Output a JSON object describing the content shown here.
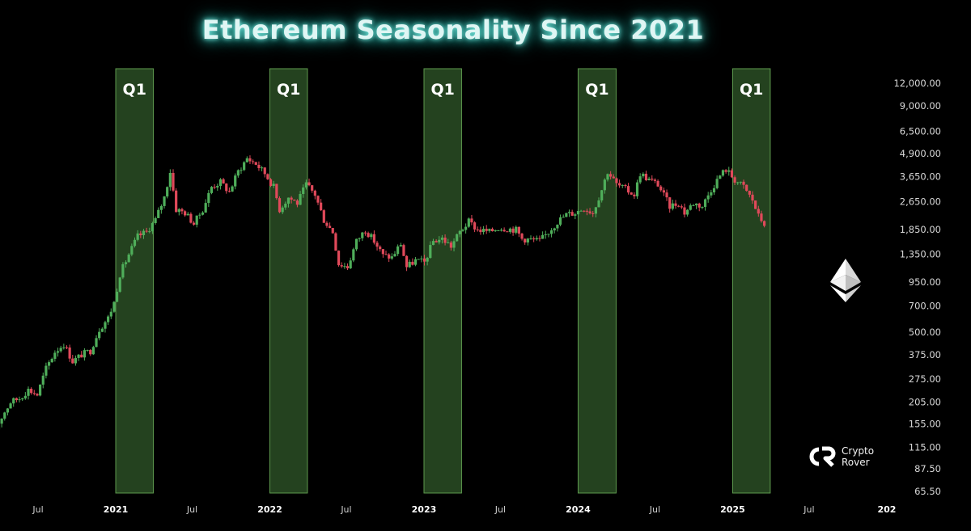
{
  "title": "Ethereum Seasonality Since 2021",
  "brand": {
    "line1": "Crypto",
    "line2": "Rover",
    "logo_text": "CR",
    "icon": "crypto-rover-logo"
  },
  "colors": {
    "bull": "#4fae5a",
    "bear": "#e0495a",
    "highlight_fill": "#24421f",
    "highlight_border": "#5e9a4e",
    "title_glow": "#3fd8cc"
  },
  "icons": {
    "eth": "ethereum-diamond-icon"
  },
  "chart_data": {
    "type": "candlestick",
    "title": "Ethereum Seasonality Since 2021",
    "y_scale": "log",
    "ylim": [
      65.5,
      12000
    ],
    "y_ticks": [
      "12,000.00",
      "9,000.00",
      "6,500.00",
      "4,900.00",
      "3,650.00",
      "2,650.00",
      "1,850.00",
      "1,350.00",
      "950.00",
      "700.00",
      "500.00",
      "375.00",
      "275.00",
      "205.00",
      "155.00",
      "115.00",
      "87.50",
      "65.50"
    ],
    "x_ticks": [
      {
        "label": "Jul",
        "date": "2020-07-01",
        "bold": false
      },
      {
        "label": "2021",
        "date": "2021-01-01",
        "bold": true
      },
      {
        "label": "Jul",
        "date": "2021-07-01",
        "bold": false
      },
      {
        "label": "2022",
        "date": "2022-01-01",
        "bold": true
      },
      {
        "label": "Jul",
        "date": "2022-07-01",
        "bold": false
      },
      {
        "label": "2023",
        "date": "2023-01-01",
        "bold": true
      },
      {
        "label": "Jul",
        "date": "2023-07-01",
        "bold": false
      },
      {
        "label": "2024",
        "date": "2024-01-01",
        "bold": true
      },
      {
        "label": "Jul",
        "date": "2024-07-01",
        "bold": false
      },
      {
        "label": "2025",
        "date": "2025-01-01",
        "bold": true
      },
      {
        "label": "Jul",
        "date": "2025-07-01",
        "bold": false
      },
      {
        "label": "202",
        "date": "2026-01-01",
        "bold": true
      }
    ],
    "highlights": [
      {
        "label": "Q1",
        "start": "2021-01-01",
        "end": "2021-03-31"
      },
      {
        "label": "Q1",
        "start": "2022-01-01",
        "end": "2022-03-31"
      },
      {
        "label": "Q1",
        "start": "2023-01-01",
        "end": "2023-03-31"
      },
      {
        "label": "Q1",
        "start": "2024-01-01",
        "end": "2024-03-31"
      },
      {
        "label": "Q1",
        "start": "2025-01-01",
        "end": "2025-03-31"
      }
    ],
    "price_path": [
      [
        "2020-03-16",
        135
      ],
      [
        "2020-04-06",
        170
      ],
      [
        "2020-04-27",
        205
      ],
      [
        "2020-05-18",
        215
      ],
      [
        "2020-06-08",
        240
      ],
      [
        "2020-06-29",
        225
      ],
      [
        "2020-07-20",
        315
      ],
      [
        "2020-08-10",
        390
      ],
      [
        "2020-08-31",
        430
      ],
      [
        "2020-09-21",
        345
      ],
      [
        "2020-10-12",
        375
      ],
      [
        "2020-11-02",
        395
      ],
      [
        "2020-11-23",
        520
      ],
      [
        "2020-12-14",
        600
      ],
      [
        "2020-12-28",
        730
      ],
      [
        "2021-01-11",
        1050
      ],
      [
        "2021-02-01",
        1350
      ],
      [
        "2021-02-22",
        1700
      ],
      [
        "2021-03-15",
        1800
      ],
      [
        "2021-04-05",
        2100
      ],
      [
        "2021-04-26",
        2800
      ],
      [
        "2021-05-10",
        3900
      ],
      [
        "2021-05-24",
        2400
      ],
      [
        "2021-06-14",
        2300
      ],
      [
        "2021-07-05",
        2000
      ],
      [
        "2021-07-26",
        2400
      ],
      [
        "2021-08-16",
        3200
      ],
      [
        "2021-09-06",
        3400
      ],
      [
        "2021-09-27",
        3000
      ],
      [
        "2021-10-18",
        3900
      ],
      [
        "2021-11-08",
        4600
      ],
      [
        "2021-11-29",
        4300
      ],
      [
        "2021-12-20",
        3800
      ],
      [
        "2022-01-10",
        3200
      ],
      [
        "2022-01-24",
        2400
      ],
      [
        "2022-02-14",
        2800
      ],
      [
        "2022-03-07",
        2600
      ],
      [
        "2022-03-28",
        3300
      ],
      [
        "2022-04-18",
        2900
      ],
      [
        "2022-05-09",
        2100
      ],
      [
        "2022-05-30",
        1800
      ],
      [
        "2022-06-13",
        1200
      ],
      [
        "2022-07-04",
        1150
      ],
      [
        "2022-07-25",
        1600
      ],
      [
        "2022-08-15",
        1850
      ],
      [
        "2022-09-05",
        1600
      ],
      [
        "2022-09-26",
        1330
      ],
      [
        "2022-10-17",
        1300
      ],
      [
        "2022-11-07",
        1550
      ],
      [
        "2022-11-21",
        1150
      ],
      [
        "2022-12-12",
        1250
      ],
      [
        "2023-01-02",
        1220
      ],
      [
        "2023-01-23",
        1600
      ],
      [
        "2023-02-13",
        1650
      ],
      [
        "2023-03-06",
        1500
      ],
      [
        "2023-03-27",
        1800
      ],
      [
        "2023-04-17",
        2050
      ],
      [
        "2023-05-08",
        1850
      ],
      [
        "2023-06-05",
        1800
      ],
      [
        "2023-06-26",
        1900
      ],
      [
        "2023-07-17",
        1880
      ],
      [
        "2023-08-07",
        1850
      ],
      [
        "2023-08-21",
        1650
      ],
      [
        "2023-09-11",
        1630
      ],
      [
        "2023-10-02",
        1600
      ],
      [
        "2023-10-23",
        1800
      ],
      [
        "2023-11-13",
        2050
      ],
      [
        "2023-12-04",
        2250
      ],
      [
        "2023-12-25",
        2300
      ],
      [
        "2024-01-15",
        2450
      ],
      [
        "2024-02-05",
        2300
      ],
      [
        "2024-02-26",
        3100
      ],
      [
        "2024-03-11",
        3900
      ],
      [
        "2024-04-01",
        3300
      ],
      [
        "2024-04-22",
        3100
      ],
      [
        "2024-05-13",
        2900
      ],
      [
        "2024-05-27",
        3800
      ],
      [
        "2024-06-17",
        3500
      ],
      [
        "2024-07-08",
        3300
      ],
      [
        "2024-08-05",
        2500
      ],
      [
        "2024-08-26",
        2600
      ],
      [
        "2024-09-09",
        2300
      ],
      [
        "2024-09-30",
        2600
      ],
      [
        "2024-10-21",
        2500
      ],
      [
        "2024-11-11",
        3100
      ],
      [
        "2024-12-02",
        3700
      ],
      [
        "2024-12-16",
        4000
      ],
      [
        "2025-01-06",
        3500
      ],
      [
        "2025-01-27",
        3200
      ],
      [
        "2025-02-17",
        2700
      ],
      [
        "2025-03-03",
        2200
      ],
      [
        "2025-03-17",
        2000
      ]
    ]
  }
}
